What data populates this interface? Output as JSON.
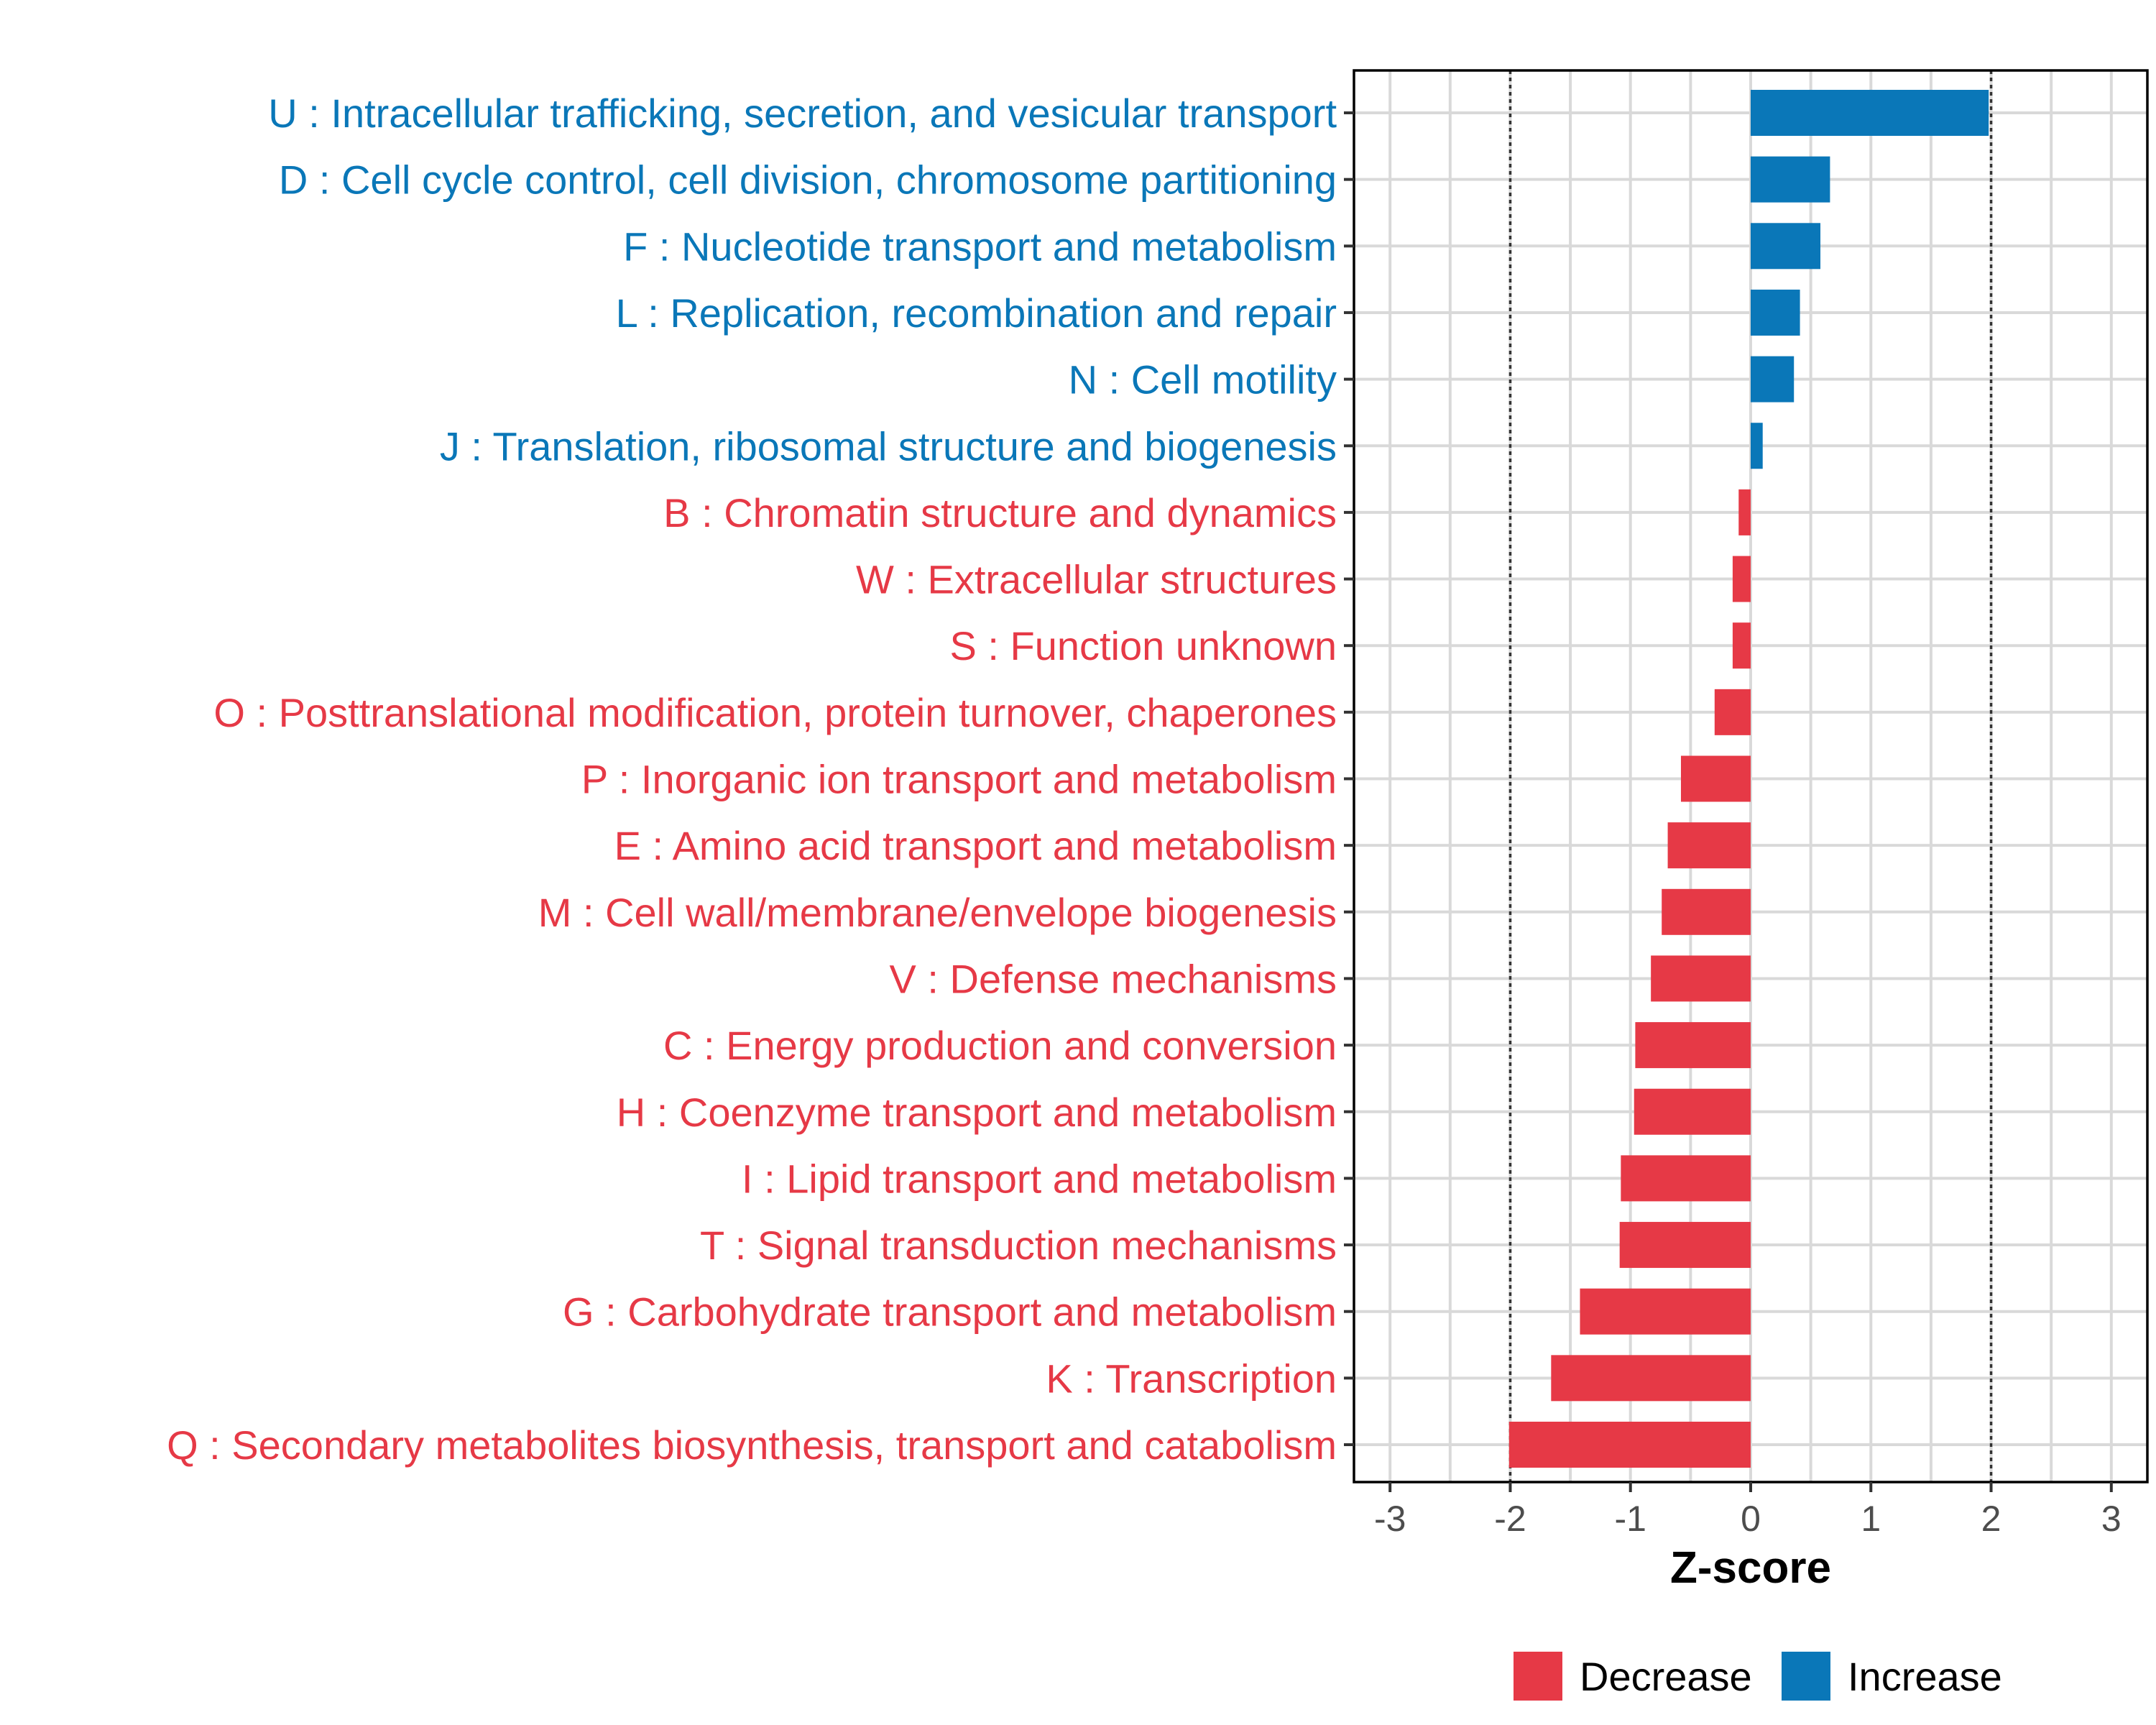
{
  "chart_data": {
    "type": "bar",
    "orientation": "horizontal",
    "xlabel": "Z-score",
    "xlim": [
      -3.3,
      3.3
    ],
    "xticks": [
      -3,
      -2,
      -1,
      0,
      1,
      2,
      3
    ],
    "reference_lines": [
      -2,
      2
    ],
    "colors": {
      "Decrease": "#e63946",
      "Increase": "#0a77b8"
    },
    "legend": [
      {
        "name": "Decrease",
        "color": "#e63946"
      },
      {
        "name": "Increase",
        "color": "#0a77b8"
      }
    ],
    "categories": [
      "U : Intracellular trafficking, secretion, and vesicular transport",
      "D : Cell cycle control, cell division, chromosome partitioning",
      "F : Nucleotide transport and metabolism",
      "L : Replication, recombination and repair",
      "N : Cell motility",
      "J : Translation, ribosomal structure and biogenesis",
      "B : Chromatin structure and dynamics",
      "W : Extracellular structures",
      "S : Function unknown",
      "O : Posttranslational modification, protein turnover, chaperones",
      "P : Inorganic ion transport and metabolism",
      "E : Amino acid transport and metabolism",
      "M : Cell wall/membrane/envelope biogenesis",
      "V : Defense mechanisms",
      "C : Energy production and conversion",
      "H : Coenzyme transport and metabolism",
      "I : Lipid transport and metabolism",
      "T : Signal transduction mechanisms",
      "G : Carbohydrate transport and metabolism",
      "K : Transcription",
      "Q : Secondary metabolites biosynthesis, transport and catabolism"
    ],
    "values": [
      1.98,
      0.66,
      0.58,
      0.41,
      0.36,
      0.1,
      -0.1,
      -0.15,
      -0.15,
      -0.3,
      -0.58,
      -0.69,
      -0.74,
      -0.83,
      -0.96,
      -0.97,
      -1.08,
      -1.09,
      -1.42,
      -1.66,
      -2.01
    ],
    "groups": [
      "Increase",
      "Increase",
      "Increase",
      "Increase",
      "Increase",
      "Increase",
      "Decrease",
      "Decrease",
      "Decrease",
      "Decrease",
      "Decrease",
      "Decrease",
      "Decrease",
      "Decrease",
      "Decrease",
      "Decrease",
      "Decrease",
      "Decrease",
      "Decrease",
      "Decrease",
      "Decrease"
    ]
  }
}
